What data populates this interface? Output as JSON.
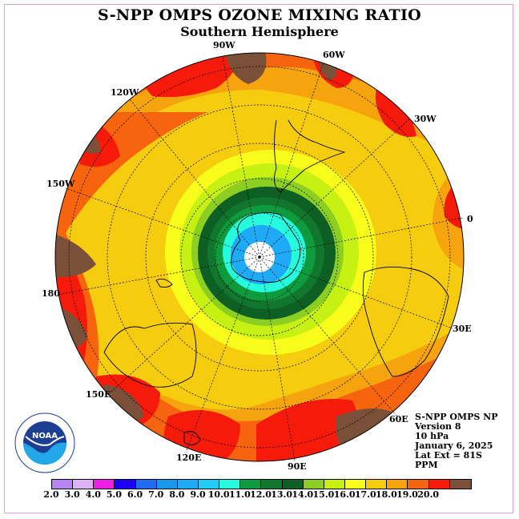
{
  "title": "S-NPP OMPS OZONE MIXING RATIO",
  "subtitle": "Southern Hemisphere",
  "longitude_labels": {
    "lon_90w": "90W",
    "lon_60w": "60W",
    "lon_120w": "120W",
    "lon_30w": "30W",
    "lon_150w": "150W",
    "lon_0": "0",
    "lon_180": "180",
    "lon_30e": "30E",
    "lon_150e": "150E",
    "lon_60e": "60E",
    "lon_120e": "120E",
    "lon_90e": "90E"
  },
  "info": {
    "instrument": "S-NPP OMPS NP",
    "version": "Version 8",
    "level": "10 hPa",
    "date": "January 6, 2025",
    "lat_ext": "Lat Ext = 81S",
    "units": "PPM"
  },
  "logo_text": {
    "name": "NOAA",
    "ring": "NATIONAL OCEANIC AND ATMOSPHERIC ADMINISTRATION · U.S. DEPARTMENT OF COMMERCE"
  },
  "colorbar": {
    "ticks": [
      "2.0",
      "3.0",
      "4.0",
      "5.0",
      "6.0",
      "7.0",
      "8.0",
      "9.0",
      "10.0",
      "11.0",
      "12.0",
      "13.0",
      "14.0",
      "15.0",
      "16.0",
      "17.0",
      "18.0",
      "19.0",
      "20.0"
    ],
    "colors": [
      "#b883f2",
      "#dcb2f2",
      "#ee1ee9",
      "#1b00f4",
      "#1e6cf0",
      "#1996ee",
      "#1eaaf7",
      "#22ccf4",
      "#26fbde",
      "#0e9b3d",
      "#11772f",
      "#0d5f24",
      "#8ccf22",
      "#c7f112",
      "#f8fc1a",
      "#f6cc0e",
      "#f6a40e",
      "#f6640e",
      "#f51a0a",
      "#7a5039"
    ]
  }
}
